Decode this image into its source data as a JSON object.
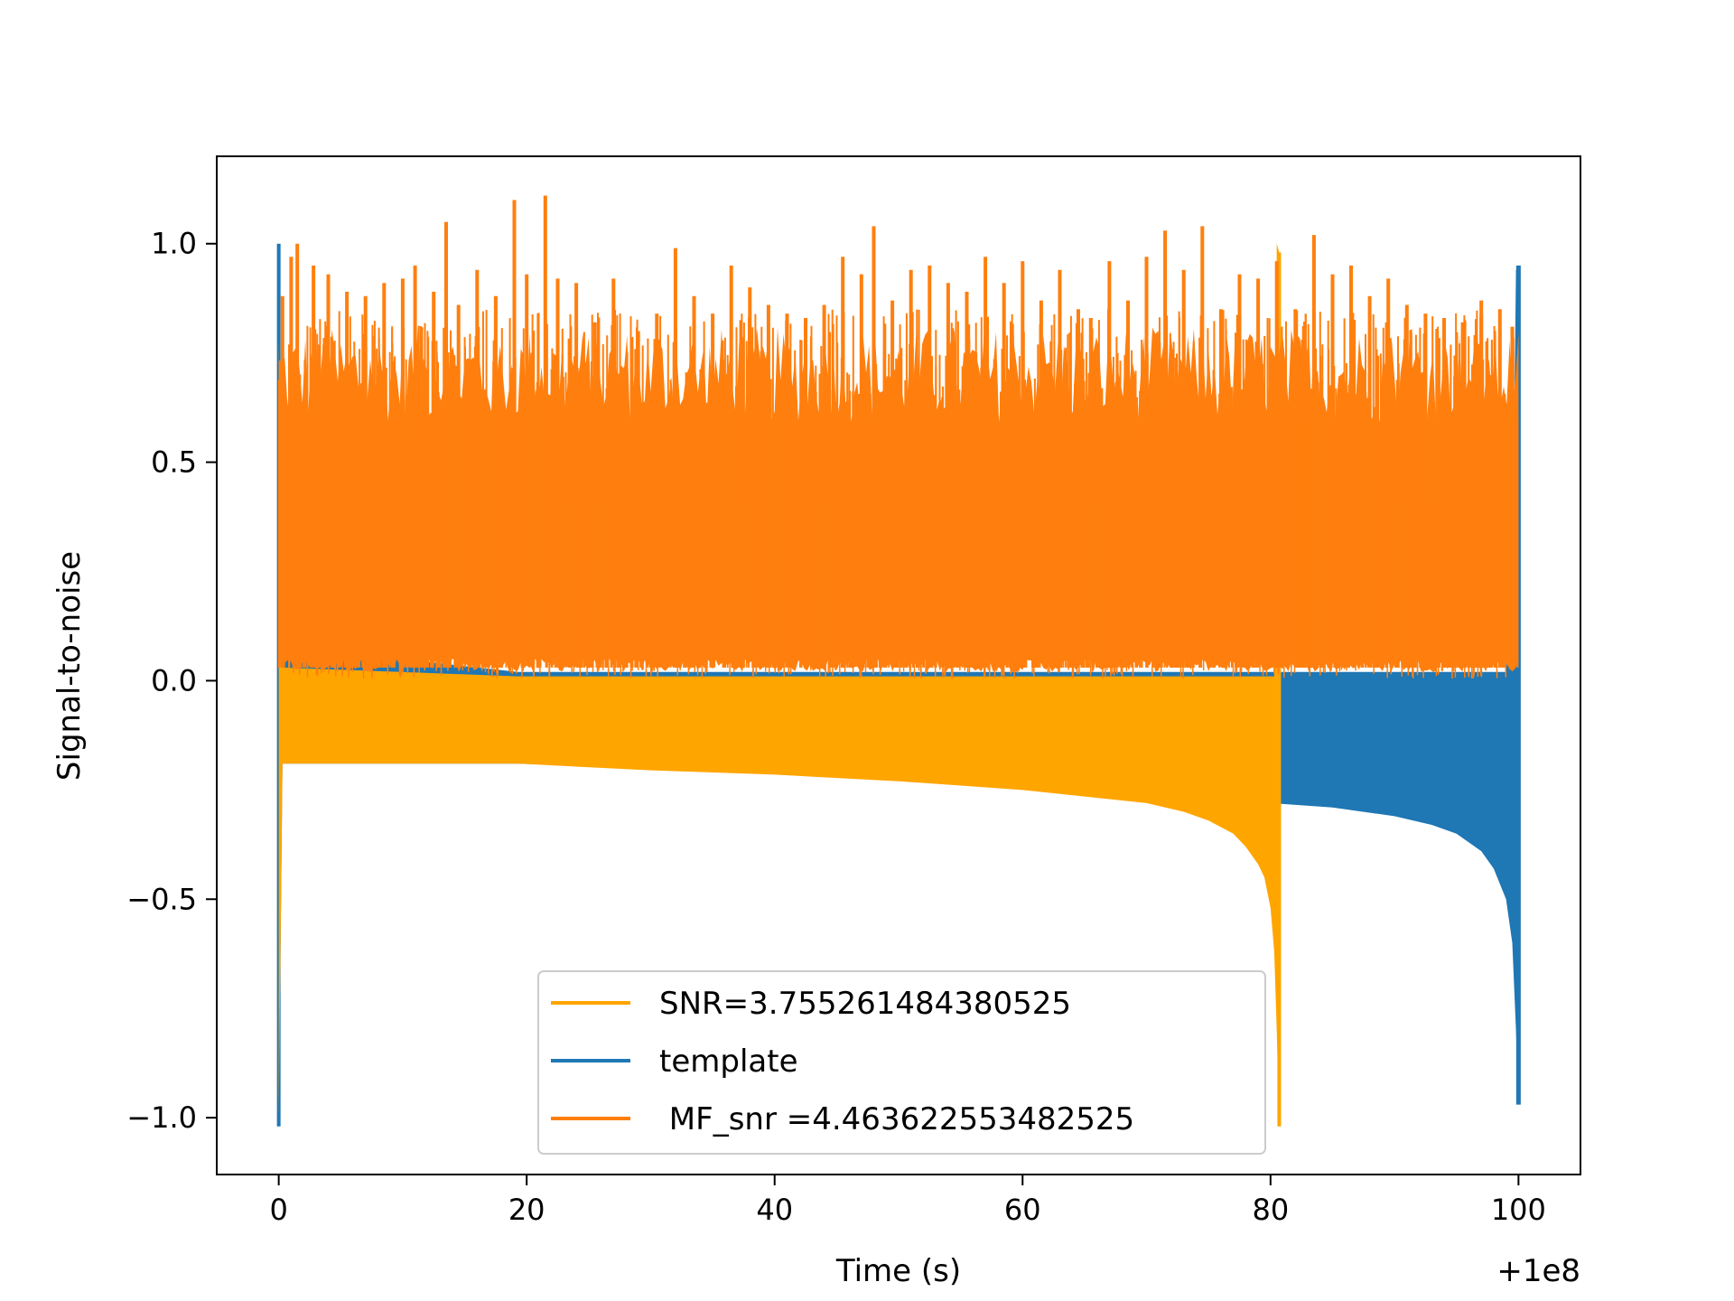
{
  "chart_data": {
    "type": "line",
    "title": "",
    "xlabel": "Time (s)",
    "ylabel": "Signal-to-noise",
    "x_offset_label": "+1e8",
    "xlim": [
      -5,
      105
    ],
    "ylim": [
      -1.13,
      1.2
    ],
    "x_ticks": [
      0,
      20,
      40,
      60,
      80,
      100
    ],
    "x_tick_labels": [
      "0",
      "20",
      "40",
      "60",
      "80",
      "100"
    ],
    "y_ticks": [
      -1.0,
      -0.5,
      0.0,
      0.5,
      1.0
    ],
    "y_tick_labels": [
      "−1.0",
      "−0.5",
      "0.0",
      "0.5",
      "1.0"
    ],
    "grid": false,
    "legend_position": "lower-center",
    "series": [
      {
        "name": "SNR=3.755261484380525",
        "color": "#ffa500",
        "note": "chirp signal, 0 to 80.7 s",
        "x": [
          0,
          0.3,
          19.3,
          19.4,
          30,
          40,
          50,
          60,
          65,
          70,
          73,
          75,
          77,
          78,
          79,
          79.5,
          80,
          80.3,
          80.5,
          80.7
        ],
        "upper": [
          0.78,
          0.03,
          0.01,
          0.01,
          0.01,
          0.01,
          0.01,
          0.01,
          0.01,
          0.01,
          0.01,
          0.01,
          0.01,
          0.01,
          0.01,
          0.01,
          0.01,
          0.01,
          1.0,
          0.98
        ],
        "lower": [
          -1.0,
          -0.19,
          -0.19,
          -0.19,
          -0.205,
          -0.215,
          -0.23,
          -0.25,
          -0.265,
          -0.28,
          -0.3,
          -0.32,
          -0.35,
          -0.38,
          -0.42,
          -0.45,
          -0.52,
          -0.62,
          -0.8,
          -1.02
        ]
      },
      {
        "name": "template",
        "color": "#1f77b4",
        "note": "chirp template, 0 to 100 s",
        "x": [
          0,
          0.3,
          19.3,
          30,
          40,
          50,
          60,
          70,
          80,
          85,
          90,
          93,
          95,
          97,
          98,
          99,
          99.5,
          99.8,
          100
        ],
        "upper": [
          1.0,
          0.08,
          0.02,
          0.02,
          0.02,
          0.02,
          0.02,
          0.02,
          0.02,
          0.02,
          0.02,
          0.02,
          0.02,
          0.02,
          0.02,
          0.02,
          0.2,
          0.94,
          0.95
        ],
        "lower": [
          -1.02,
          -0.19,
          -0.19,
          -0.2,
          -0.21,
          -0.225,
          -0.24,
          -0.26,
          -0.28,
          -0.29,
          -0.31,
          -0.33,
          -0.35,
          -0.39,
          -0.43,
          -0.5,
          -0.6,
          -0.8,
          -0.97
        ]
      },
      {
        "name": " MF_snr =4.463622553482525",
        "color": "#ff7f0e",
        "note": "matched-filter output, noisy band 0 to 100 s",
        "band_low": 0.02,
        "band_high": 0.65,
        "peaks_x": [
          0.3,
          1.0,
          1.5,
          2.8,
          4.0,
          5.5,
          7.0,
          8.5,
          10.0,
          11.0,
          12.5,
          13.5,
          14.5,
          16.0,
          17.5,
          19.0,
          20.0,
          21.5,
          22.5,
          24.0,
          25.5,
          27.0,
          29.0,
          30.5,
          32.0,
          33.5,
          35.0,
          36.5,
          38.0,
          39.5,
          41.0,
          42.5,
          44.0,
          45.5,
          47.0,
          48.0,
          49.5,
          51.0,
          52.5,
          54.0,
          55.5,
          57.0,
          58.5,
          60.0,
          61.5,
          63.0,
          64.5,
          65.5,
          67.0,
          68.5,
          70.0,
          71.5,
          73.0,
          74.5,
          76.0,
          77.5,
          79.0,
          80.5,
          82.0,
          83.5,
          85.0,
          86.5,
          88.0,
          89.5,
          91.0,
          92.5,
          94.0,
          95.5,
          97.0,
          98.5,
          99.5
        ],
        "peaks_y": [
          0.88,
          0.97,
          1.0,
          0.95,
          0.93,
          0.89,
          0.88,
          0.91,
          0.92,
          0.95,
          0.89,
          1.05,
          0.86,
          0.94,
          0.88,
          1.1,
          0.93,
          1.11,
          0.92,
          0.91,
          0.82,
          0.92,
          0.8,
          0.84,
          0.99,
          0.88,
          0.84,
          0.95,
          0.9,
          0.86,
          0.84,
          0.83,
          0.86,
          0.97,
          0.93,
          1.04,
          0.87,
          0.94,
          0.95,
          0.91,
          0.89,
          0.97,
          0.91,
          0.96,
          0.87,
          0.94,
          0.85,
          0.83,
          0.96,
          0.87,
          0.97,
          1.03,
          0.94,
          1.04,
          0.85,
          0.93,
          0.92,
          0.96,
          0.85,
          1.02,
          0.93,
          0.95,
          0.88,
          0.92,
          0.86,
          0.84,
          0.83,
          0.82,
          0.87,
          0.85,
          0.81
        ]
      }
    ]
  }
}
